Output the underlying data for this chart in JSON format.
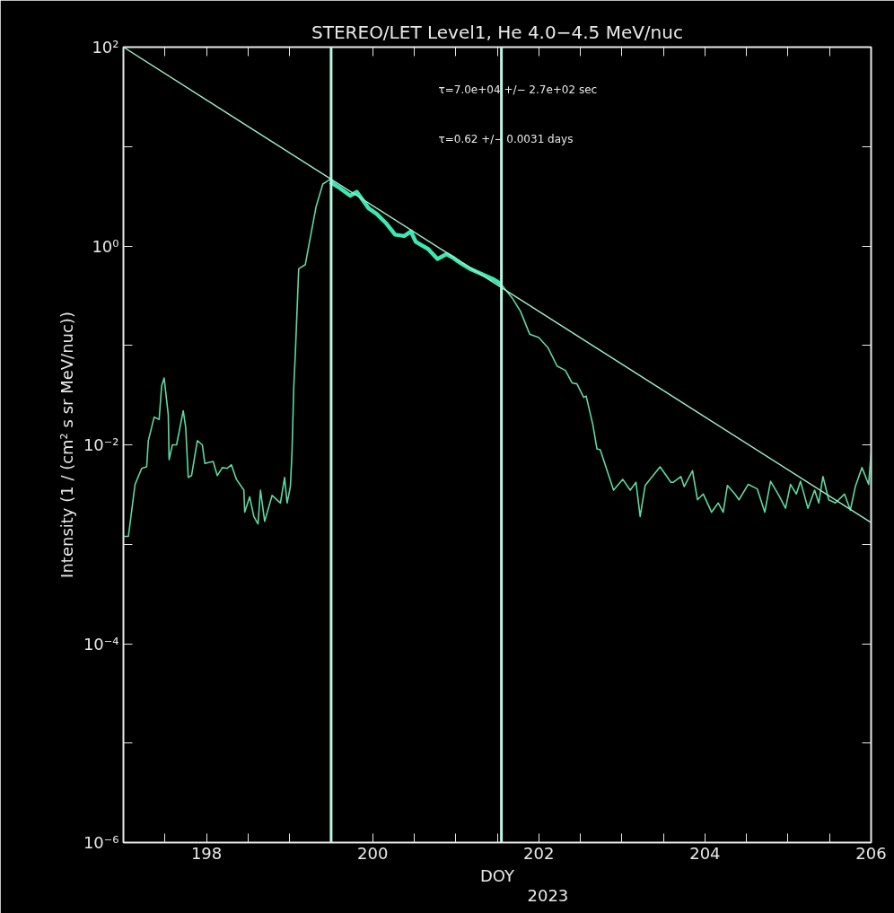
{
  "chart_data": {
    "type": "line",
    "title": "STEREO/LET Level1, He 4.0−4.5 MeV/nuc",
    "xlabel": "DOY",
    "ylabel": "Intensity (1 / (cm² s sr MeV/nuc))",
    "annotations": [
      "τ=7.0e+04 +/− 2.7e+02 sec",
      "τ=0.62 +/− 0.0031 days",
      "2023"
    ],
    "log": true,
    "grid": false,
    "marker": "none",
    "line_style": "solid",
    "xlim": [
      197,
      206
    ],
    "ylim": [
      1e-06,
      100
    ],
    "xticks": [
      {
        "value": 197,
        "label": null
      },
      {
        "value": 197.5,
        "label": null
      },
      198,
      {
        "value": 198.5,
        "label": null
      },
      {
        "value": 199,
        "label": null
      },
      {
        "value": 199.5,
        "label": null
      },
      200,
      {
        "value": 200.5,
        "label": null
      },
      {
        "value": 201,
        "label": null
      },
      {
        "value": 201.5,
        "label": null
      },
      202,
      {
        "value": 202.5,
        "label": null
      },
      {
        "value": 203,
        "label": null
      },
      {
        "value": 203.5,
        "label": null
      },
      204,
      {
        "value": 204.5,
        "label": null
      },
      {
        "value": 205,
        "label": null
      },
      {
        "value": 205.5,
        "label": null
      },
      206
    ],
    "yticks": [
      {
        "value": 1e-06,
        "label": "10⁻⁶"
      },
      {
        "value": 1e-05,
        "label": null
      },
      {
        "value": 0.0001,
        "label": "10⁻⁴"
      },
      {
        "value": 0.001,
        "label": null
      },
      {
        "value": 0.01,
        "label": "10⁻²"
      },
      {
        "value": 0.1,
        "label": null
      },
      {
        "value": 1,
        "label": "10⁰"
      },
      {
        "value": 10,
        "label": null
      },
      {
        "value": 100,
        "label": "10²"
      }
    ],
    "ref_lines": [
      {
        "axis": "x",
        "value": 199.5,
        "color": "#b8f8e0"
      },
      {
        "axis": "x",
        "value": 201.55,
        "color": "#b8f8e0"
      }
    ],
    "series": [
      {
        "color": "#5ed8a0",
        "x": [
          197.0,
          197.06,
          197.14,
          197.22,
          197.28,
          197.3,
          197.37,
          197.43,
          197.46,
          197.49,
          197.54,
          197.55,
          197.59,
          197.64,
          197.72,
          197.75,
          197.78,
          197.82,
          197.89,
          197.95,
          197.98,
          198.08,
          198.13,
          198.19,
          198.25,
          198.3,
          198.36,
          198.45,
          198.46,
          198.52,
          198.57,
          198.62,
          198.65,
          198.7,
          198.79,
          198.89,
          198.94,
          198.97,
          199.01,
          199.03,
          199.05,
          199.07,
          199.11,
          199.19,
          199.24,
          199.32,
          199.4,
          199.49,
          199.59,
          199.73,
          199.81,
          199.95,
          200.05,
          200.16,
          200.27,
          200.38,
          200.46,
          200.52,
          200.67,
          200.78,
          200.89,
          200.97,
          201.05,
          201.17,
          201.32,
          201.46,
          201.55,
          201.68,
          201.78,
          201.89,
          202.0,
          202.11,
          202.22,
          202.32,
          202.4,
          202.46,
          202.54,
          202.57,
          202.65,
          202.7,
          202.74,
          202.9,
          203.01,
          203.1,
          203.17,
          203.22,
          203.28,
          203.46,
          203.59,
          203.62,
          203.71,
          203.75,
          203.85,
          203.91,
          203.98,
          204.08,
          204.16,
          204.22,
          204.27,
          204.36,
          204.41,
          204.52,
          204.63,
          204.72,
          204.79,
          204.89,
          204.97,
          205.03,
          205.1,
          205.15,
          205.24,
          205.32,
          205.37,
          205.42,
          205.49,
          205.57,
          205.68,
          205.75,
          205.81,
          205.89,
          205.97,
          206.0
        ],
        "values": [
          0.0012,
          0.0012,
          0.004,
          0.0058,
          0.006,
          0.011,
          0.019,
          0.018,
          0.039,
          0.047,
          0.02,
          0.0071,
          0.01,
          0.01,
          0.022,
          0.015,
          0.0047,
          0.0049,
          0.011,
          0.01,
          0.0065,
          0.0068,
          0.0049,
          0.0059,
          0.0058,
          0.0063,
          0.0045,
          0.0035,
          0.0021,
          0.003,
          0.0019,
          0.0016,
          0.0035,
          0.0017,
          0.0031,
          0.0026,
          0.0047,
          0.0026,
          0.0038,
          0.0087,
          0.037,
          0.085,
          0.59,
          0.65,
          1.1,
          2.5,
          4.2,
          4.7,
          3.9,
          3.2,
          3.5,
          2.4,
          2.1,
          1.7,
          1.3,
          1.26,
          1.4,
          1.1,
          0.93,
          0.74,
          0.83,
          0.76,
          0.68,
          0.59,
          0.52,
          0.46,
          0.41,
          0.3,
          0.22,
          0.13,
          0.12,
          0.095,
          0.062,
          0.056,
          0.042,
          0.041,
          0.03,
          0.031,
          0.016,
          0.0091,
          0.0089,
          0.0035,
          0.0045,
          0.0035,
          0.0042,
          0.0019,
          0.0039,
          0.006,
          0.0042,
          0.0042,
          0.0048,
          0.0038,
          0.0055,
          0.0028,
          0.0032,
          0.0021,
          0.0026,
          0.0021,
          0.0039,
          0.0032,
          0.0028,
          0.004,
          0.0036,
          0.0021,
          0.0043,
          0.0031,
          0.0023,
          0.004,
          0.0032,
          0.0043,
          0.0023,
          0.0035,
          0.0026,
          0.0048,
          0.0028,
          0.0026,
          0.0032,
          0.0022,
          0.0038,
          0.0059,
          0.004,
          0.0083
        ]
      },
      {
        "color": "#3ce8b4",
        "x": [
          199.49,
          199.59,
          199.73,
          199.81,
          199.95,
          200.05,
          200.16,
          200.27,
          200.38,
          200.46,
          200.52,
          200.67,
          200.78,
          200.89,
          200.97,
          201.05,
          201.17,
          201.32,
          201.46,
          201.55
        ],
        "values": [
          4.4,
          3.9,
          3.2,
          3.5,
          2.4,
          2.1,
          1.7,
          1.3,
          1.26,
          1.4,
          1.1,
          0.93,
          0.74,
          0.83,
          0.76,
          0.68,
          0.59,
          0.52,
          0.46,
          0.41
        ]
      },
      {
        "color": "#9cecc8",
        "x": [
          197,
          206
        ],
        "values": [
          100,
          0.00165
        ]
      }
    ]
  }
}
